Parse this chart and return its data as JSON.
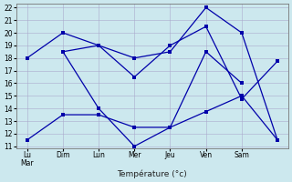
{
  "xlabel": "Température (°c)",
  "bg_color": "#cce8ee",
  "line_color": "#0000aa",
  "grid_color": "#aaaacc",
  "ylim": [
    10.8,
    22.3
  ],
  "yticks": [
    11,
    12,
    13,
    14,
    15,
    16,
    17,
    18,
    19,
    20,
    21,
    22
  ],
  "xlim": [
    -0.3,
    7.3
  ],
  "xtick_labels": [
    "Lu\nMar",
    "Dim",
    "Lun",
    "Mer",
    "Jeu",
    "Ven",
    "Sam"
  ],
  "lines": [
    {
      "x": [
        0,
        1,
        2,
        3,
        4,
        5,
        6,
        7
      ],
      "y": [
        18,
        20,
        19,
        18,
        18.5,
        22,
        20,
        11.5
      ]
    },
    {
      "x": [
        0,
        1,
        2,
        3,
        4,
        5,
        6,
        7
      ],
      "y": [
        11.5,
        13.5,
        13.5,
        12.5,
        12.5,
        13.75,
        15,
        11.5
      ]
    },
    {
      "x": [
        1,
        2,
        3,
        4,
        5,
        6
      ],
      "y": [
        18.5,
        14,
        11,
        12.5,
        18.5,
        16
      ]
    },
    {
      "x": [
        1,
        2,
        3,
        4,
        5,
        6,
        7
      ],
      "y": [
        18.5,
        19,
        16.5,
        19,
        20.5,
        14.75,
        17.75
      ]
    }
  ]
}
